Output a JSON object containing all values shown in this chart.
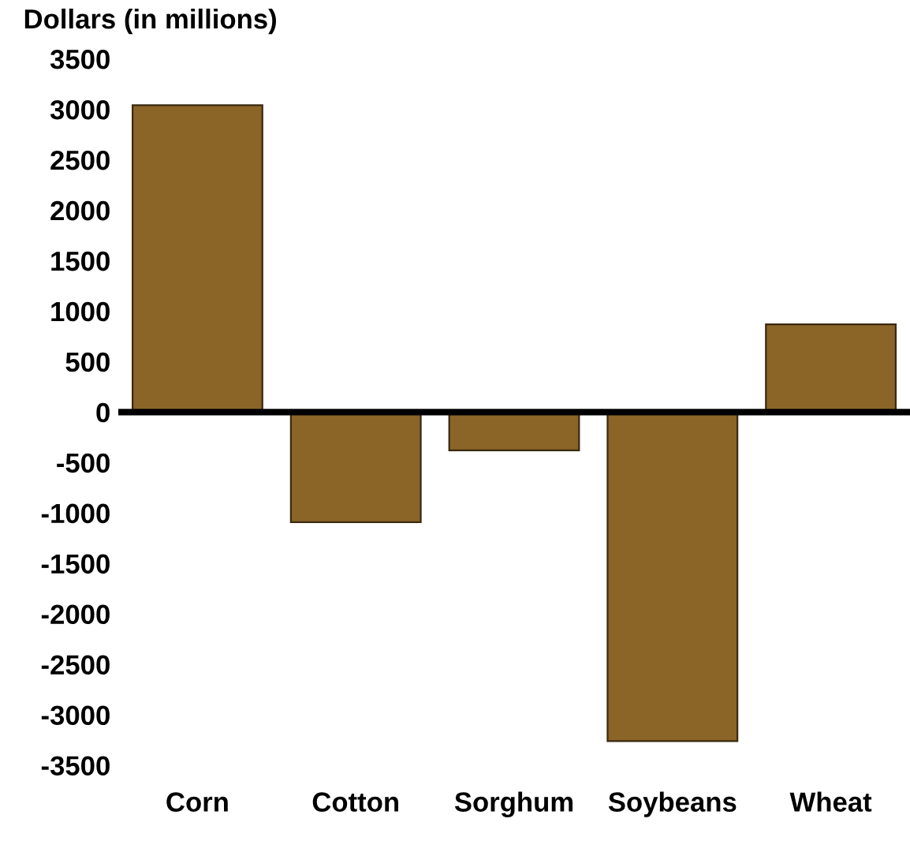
{
  "chart_data": {
    "type": "bar",
    "ylabel": "Dollars (in millions)",
    "categories": [
      "Corn",
      "Cotton",
      "Sorghum",
      "Soybeans",
      "Wheat"
    ],
    "values": [
      3040,
      -1090,
      -380,
      -3260,
      870
    ],
    "color": "#8b6428",
    "ylim": [
      -3500,
      3500
    ],
    "yticks": [
      -3500,
      -3000,
      -2500,
      -2000,
      -1500,
      -1000,
      -500,
      0,
      500,
      1000,
      1500,
      2000,
      2500,
      3000,
      3500
    ],
    "grid": false,
    "ref_lines": [
      {
        "axis": "y",
        "value": 0,
        "color": "#000000"
      }
    ]
  }
}
